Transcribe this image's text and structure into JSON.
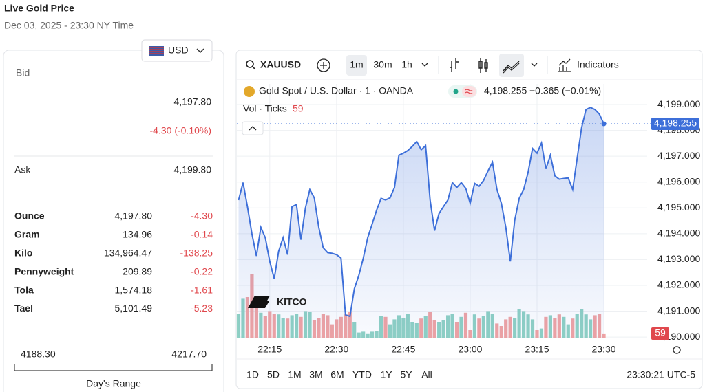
{
  "header": {
    "title": "Live Gold Price",
    "date": "Dec 03, 2025 - 23:30 NY Time"
  },
  "quote": {
    "currency": "USD",
    "bid_label": "Bid",
    "bid": "4,197.80",
    "change": "-4.30 (-0.10%)",
    "ask_label": "Ask",
    "ask": "4,199.80",
    "units": [
      {
        "name": "Ounce",
        "price": "4,197.80",
        "change": "-4.30"
      },
      {
        "name": "Gram",
        "price": "134.96",
        "change": "-0.14"
      },
      {
        "name": "Kilo",
        "price": "134,964.47",
        "change": "-138.25"
      },
      {
        "name": "Pennyweight",
        "price": "209.89",
        "change": "-0.22"
      },
      {
        "name": "Tola",
        "price": "1,574.18",
        "change": "-1.61"
      },
      {
        "name": "Tael",
        "price": "5,101.49",
        "change": "-5.23"
      }
    ],
    "range_low": "4188.30",
    "range_high": "4217.70",
    "range_label": "Day's Range"
  },
  "toolbar": {
    "symbol": "XAUUSD",
    "intervals": [
      "1m",
      "30m",
      "1h"
    ],
    "indicators": "Indicators"
  },
  "watermark": "KITCO",
  "chart_data": {
    "type": "line",
    "title": "Gold Spot / U.S. Dollar · 1 · OANDA",
    "change": "−0.365",
    "change_percent": "(−0.01%)",
    "categories": [
      null,
      null,
      null,
      null,
      null,
      null,
      null,
      "22:15",
      null,
      null,
      null,
      null,
      null,
      null,
      null,
      null,
      null,
      null,
      null,
      null,
      null,
      null,
      "22:30",
      null,
      null,
      null,
      null,
      null,
      null,
      null,
      null,
      null,
      null,
      null,
      null,
      null,
      null,
      "22:45",
      null,
      null,
      null,
      null,
      null,
      null,
      null,
      null,
      null,
      null,
      null,
      null,
      null,
      null,
      "23:00",
      null,
      null,
      null,
      null,
      null,
      null,
      null,
      null,
      null,
      null,
      null,
      null,
      null,
      null,
      "23:15",
      null,
      null,
      null,
      null,
      null,
      null,
      null,
      null,
      null,
      null,
      null,
      null,
      null,
      null,
      "23:30"
    ],
    "series": [
      {
        "name": "Gold Spot / U.S. Dollar · 1 · OANDA",
        "color": "#3d6fd9",
        "last_label": "4,198.255",
        "values": [
          4195.3,
          4195.98,
          4195.05,
          4194.0,
          4193.14,
          4194.25,
          4193.85,
          4192.93,
          4192.26,
          4193.32,
          4193.85,
          4193.19,
          4195.05,
          4195.13,
          4193.77,
          4195.0,
          4195.71,
          4195.39,
          4194.25,
          4193.46,
          4193.27,
          4193.24,
          4193.19,
          4193.06,
          4190.86,
          4190.8,
          4191.87,
          4192.39,
          4193.06,
          4193.85,
          4194.38,
          4194.92,
          4195.37,
          4195.31,
          4195.39,
          4195.79,
          4197.04,
          4197.12,
          4197.22,
          4197.38,
          4197.57,
          4197.25,
          4197.41,
          4195.31,
          4194.12,
          4194.78,
          4195.05,
          4195.31,
          4195.98,
          4195.79,
          4195.98,
          4195.76,
          4195.18,
          4195.95,
          4195.84,
          4196.06,
          4196.43,
          4196.77,
          4195.71,
          4195.18,
          4194.25,
          4192.93,
          4194.52,
          4195.37,
          4195.71,
          4196.37,
          4197.3,
          4197.12,
          4197.51,
          4196.51,
          4197.04,
          4196.24,
          4196.11,
          4196.14,
          4196.16,
          4195.71,
          4196.9,
          4198.1,
          4198.81,
          4198.89,
          4198.81,
          4198.63,
          4198.255
        ]
      },
      {
        "name": "Vol · Ticks",
        "up_color": "#8fd1c4",
        "down_color": "#f0a3a3",
        "label_color": "#e0484d",
        "values": [
          300,
          480,
          500,
          780,
          420,
          310,
          270,
          330,
          300,
          290,
          250,
          240,
          280,
          300,
          260,
          330,
          320,
          220,
          250,
          300,
          280,
          170,
          230,
          260,
          290,
          320,
          200,
          70,
          80,
          60,
          80,
          90,
          270,
          260,
          170,
          230,
          280,
          250,
          300,
          200,
          190,
          240,
          270,
          320,
          220,
          200,
          220,
          280,
          300,
          200,
          260,
          310,
          100,
          290,
          240,
          270,
          330,
          300,
          180,
          150,
          230,
          260,
          250,
          350,
          330,
          290,
          230,
          100,
          120,
          260,
          280,
          250,
          290,
          260,
          170,
          240,
          300,
          350,
          290,
          230,
          280,
          300,
          59
        ]
      }
    ],
    "ylim": [
      4189.95,
      4199.8
    ],
    "yticks": [
      {
        "value": 4199,
        "label": "4,199.000"
      },
      {
        "value": 4198,
        "label": "4,198.000"
      },
      {
        "value": 4197,
        "label": "4,197.000"
      },
      {
        "value": 4196,
        "label": "4,196.000"
      },
      {
        "value": 4195,
        "label": "4,195.000"
      },
      {
        "value": 4194,
        "label": "4,194.000"
      },
      {
        "value": 4193,
        "label": "4,193.000"
      },
      {
        "value": 4192,
        "label": "4,192.000"
      },
      {
        "value": 4191,
        "label": "4,191.000"
      },
      {
        "value": 4190,
        "label": "4,190.000"
      }
    ],
    "grid": true
  },
  "footer": {
    "ranges": [
      "1D",
      "5D",
      "1M",
      "3M",
      "6M",
      "YTD",
      "1Y",
      "5Y",
      "All"
    ],
    "clock": "23:30:21 UTC-5"
  }
}
